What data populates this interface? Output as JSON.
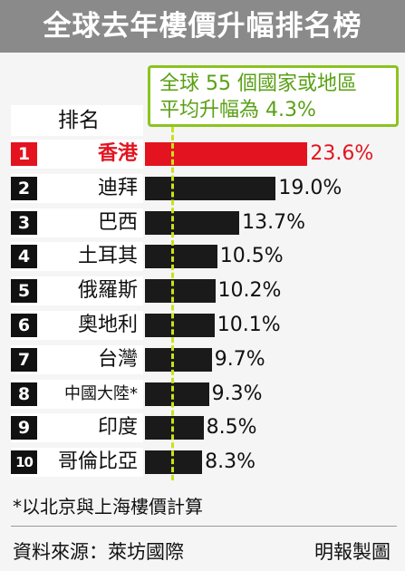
{
  "title": "全球去年樓價升幅排名榜",
  "legend": {
    "line1": "全球 55 個國家或地區",
    "line2": "平均升幅為 4.3%"
  },
  "header": "排名",
  "footnote": "*以北京與上海樓價計算",
  "source": "資料來源：萊坊國際",
  "credit": "明報製圖",
  "colors": {
    "highlight": "#e3141f",
    "bar": "#1a1a1a",
    "average_line": "#c8e21c",
    "title_bg": "#8a8a8a"
  },
  "chart_data": {
    "type": "bar",
    "orientation": "horizontal",
    "average": 4.3,
    "categories": [
      "香港",
      "迪拜",
      "巴西",
      "土耳其",
      "俄羅斯",
      "奧地利",
      "台灣",
      "中國大陸*",
      "印度",
      "哥倫比亞"
    ],
    "ranks": [
      "1",
      "2",
      "3",
      "4",
      "5",
      "6",
      "7",
      "8",
      "9",
      "10"
    ],
    "values": [
      23.6,
      19.0,
      13.7,
      10.5,
      10.2,
      10.1,
      9.7,
      9.3,
      8.5,
      8.3
    ],
    "value_labels": [
      "23.6%",
      "19.0%",
      "13.7%",
      "10.5%",
      "10.2%",
      "10.1%",
      "9.7%",
      "9.3%",
      "8.5%",
      "8.3%"
    ],
    "highlight_index": 0
  }
}
